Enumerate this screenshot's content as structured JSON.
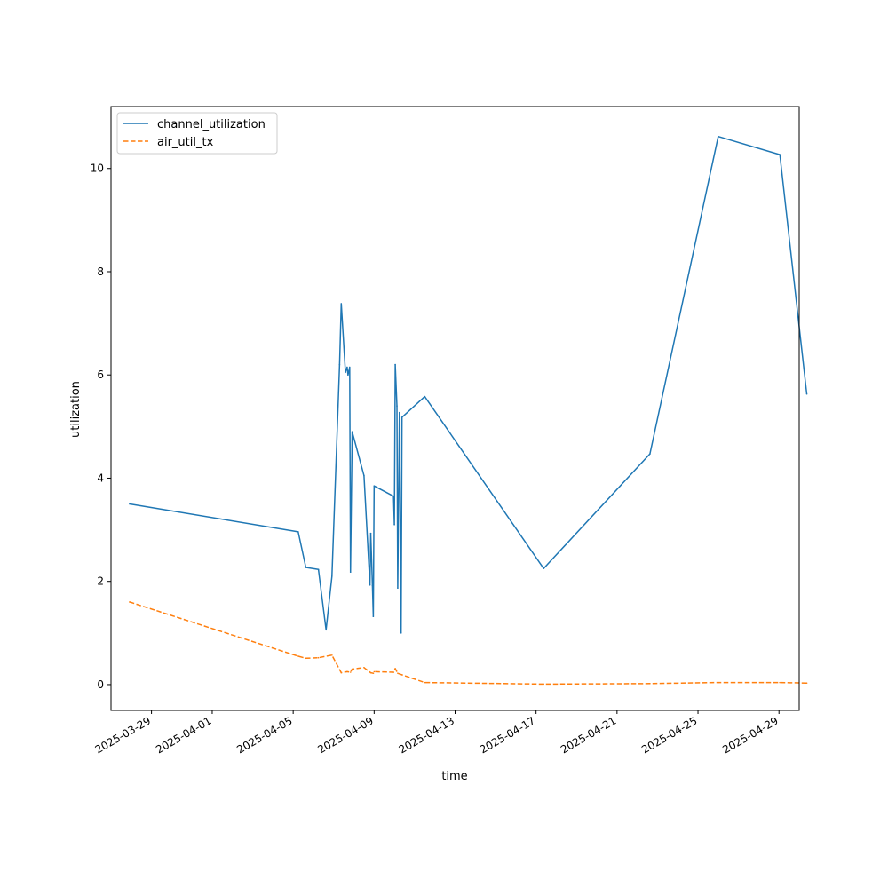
{
  "chart_data": {
    "type": "line",
    "title": "",
    "xlabel": "time",
    "ylabel": "utilization",
    "x_scale": "date",
    "xlim": [
      "2025-03-27T00:00",
      "2025-04-30T00:00"
    ],
    "ylim": [
      -0.5,
      11.2
    ],
    "x_ticks": [
      "2025-03-29",
      "2025-04-01",
      "2025-04-05",
      "2025-04-09",
      "2025-04-13",
      "2025-04-17",
      "2025-04-21",
      "2025-04-25",
      "2025-04-29"
    ],
    "y_ticks": [
      0,
      2,
      4,
      6,
      8,
      10
    ],
    "grid": false,
    "legend": "top-left",
    "series": [
      {
        "name": "channel_utilization",
        "color": "#1f77b4",
        "dash": "solid",
        "points": [
          {
            "x": "2025-03-27T22:00",
            "y": 3.5
          },
          {
            "x": "2025-04-05T06:00",
            "y": 2.96
          },
          {
            "x": "2025-04-05T15:00",
            "y": 2.27
          },
          {
            "x": "2025-04-06T06:00",
            "y": 2.23
          },
          {
            "x": "2025-04-06T15:00",
            "y": 1.06
          },
          {
            "x": "2025-04-06T22:00",
            "y": 2.1
          },
          {
            "x": "2025-04-07T07:00",
            "y": 6.2
          },
          {
            "x": "2025-04-07T09:00",
            "y": 7.38
          },
          {
            "x": "2025-04-07T14:00",
            "y": 6.05
          },
          {
            "x": "2025-04-07T16:00",
            "y": 6.15
          },
          {
            "x": "2025-04-07T17:00",
            "y": 6.0
          },
          {
            "x": "2025-04-07T19:00",
            "y": 6.15
          },
          {
            "x": "2025-04-07T20:00",
            "y": 2.18
          },
          {
            "x": "2025-04-07T22:00",
            "y": 4.9
          },
          {
            "x": "2025-04-08T12:00",
            "y": 4.05
          },
          {
            "x": "2025-04-08T19:00",
            "y": 1.93
          },
          {
            "x": "2025-04-08T20:00",
            "y": 2.93
          },
          {
            "x": "2025-04-08T22:00",
            "y": 1.92
          },
          {
            "x": "2025-04-08T23:00",
            "y": 1.32
          },
          {
            "x": "2025-04-09T00:00",
            "y": 3.85
          },
          {
            "x": "2025-04-09T23:00",
            "y": 3.65
          },
          {
            "x": "2025-04-10T00:00",
            "y": 3.1
          },
          {
            "x": "2025-04-10T01:00",
            "y": 6.2
          },
          {
            "x": "2025-04-10T03:00",
            "y": 5.4
          },
          {
            "x": "2025-04-10T04:00",
            "y": 1.87
          },
          {
            "x": "2025-04-10T06:00",
            "y": 5.27
          },
          {
            "x": "2025-04-10T08:00",
            "y": 1.0
          },
          {
            "x": "2025-04-10T09:00",
            "y": 5.18
          },
          {
            "x": "2025-04-11T12:00",
            "y": 5.58
          },
          {
            "x": "2025-04-17T09:00",
            "y": 2.25
          },
          {
            "x": "2025-04-22T15:00",
            "y": 4.47
          },
          {
            "x": "2025-04-26T00:00",
            "y": 10.62
          },
          {
            "x": "2025-04-29T01:00",
            "y": 10.27
          },
          {
            "x": "2025-04-30T09:00",
            "y": 5.63
          }
        ]
      },
      {
        "name": "air_util_tx",
        "color": "#ff7f0e",
        "dash": "dashed",
        "points": [
          {
            "x": "2025-03-27T22:00",
            "y": 1.6
          },
          {
            "x": "2025-04-05T06:00",
            "y": 0.55
          },
          {
            "x": "2025-04-05T15:00",
            "y": 0.51
          },
          {
            "x": "2025-04-06T06:00",
            "y": 0.52
          },
          {
            "x": "2025-04-06T22:00",
            "y": 0.57
          },
          {
            "x": "2025-04-07T09:00",
            "y": 0.23
          },
          {
            "x": "2025-04-07T16:00",
            "y": 0.25
          },
          {
            "x": "2025-04-07T20:00",
            "y": 0.24
          },
          {
            "x": "2025-04-07T22:00",
            "y": 0.3
          },
          {
            "x": "2025-04-08T12:00",
            "y": 0.33
          },
          {
            "x": "2025-04-08T20:00",
            "y": 0.23
          },
          {
            "x": "2025-04-08T23:00",
            "y": 0.22
          },
          {
            "x": "2025-04-09T00:00",
            "y": 0.25
          },
          {
            "x": "2025-04-09T23:00",
            "y": 0.24
          },
          {
            "x": "2025-04-10T01:00",
            "y": 0.31
          },
          {
            "x": "2025-04-10T04:00",
            "y": 0.22
          },
          {
            "x": "2025-04-10T09:00",
            "y": 0.19
          },
          {
            "x": "2025-04-11T12:00",
            "y": 0.04
          },
          {
            "x": "2025-04-17T09:00",
            "y": 0.01
          },
          {
            "x": "2025-04-22T15:00",
            "y": 0.02
          },
          {
            "x": "2025-04-26T00:00",
            "y": 0.04
          },
          {
            "x": "2025-04-29T01:00",
            "y": 0.04
          },
          {
            "x": "2025-04-30T09:00",
            "y": 0.03
          }
        ]
      }
    ]
  }
}
